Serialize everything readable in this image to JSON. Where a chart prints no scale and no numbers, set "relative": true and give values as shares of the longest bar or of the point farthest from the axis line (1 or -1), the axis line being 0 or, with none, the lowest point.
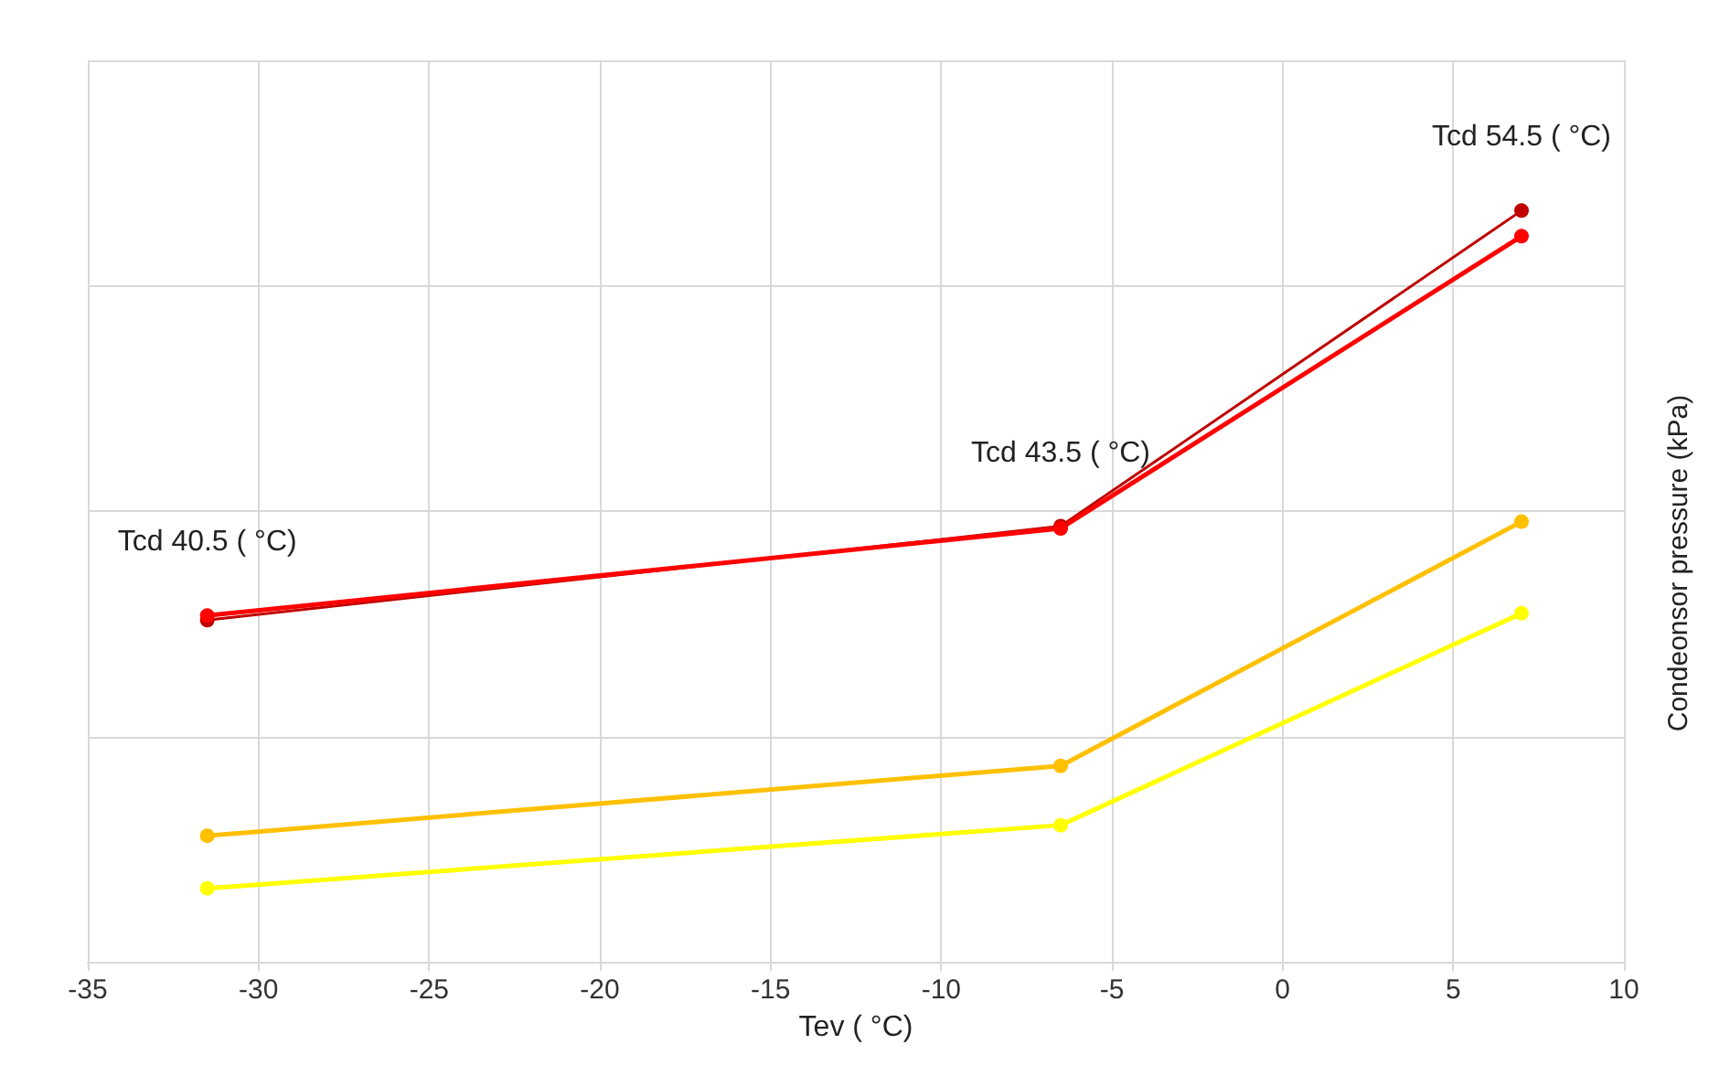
{
  "chart_data": {
    "type": "line",
    "relative": true,
    "xlabel": "Tev ( °C)",
    "ylabel": "Condeonsor pressure (kPa)",
    "x": [
      -31.5,
      -6.5,
      7
    ],
    "xlim": [
      -35,
      10
    ],
    "xticks": [
      -35,
      -30,
      -25,
      -20,
      -15,
      -10,
      -5,
      0,
      5,
      10
    ],
    "series": [
      {
        "color": "#c00000",
        "values": [
          0.455,
          0.58,
          1
        ]
      },
      {
        "color": "#ff0000",
        "values": [
          0.461,
          0.577,
          0.966
        ]
      },
      {
        "color": "#ffc000",
        "values": [
          0.168,
          0.261,
          0.586
        ]
      },
      {
        "color": "#ffff00",
        "values": [
          0.098,
          0.182,
          0.464
        ]
      }
    ],
    "annotations": [
      {
        "text": "Tcd 40.5 ( °C)",
        "x": -31.5,
        "y": 0.461
      },
      {
        "text": "Tcd 43.5 ( °C)",
        "x": -6.5,
        "y": 0.58
      },
      {
        "text": "Tcd 54.5 ( °C)",
        "x": 7,
        "y": 1
      }
    ],
    "grid": true,
    "marker": "circle",
    "line_style": "solid"
  }
}
